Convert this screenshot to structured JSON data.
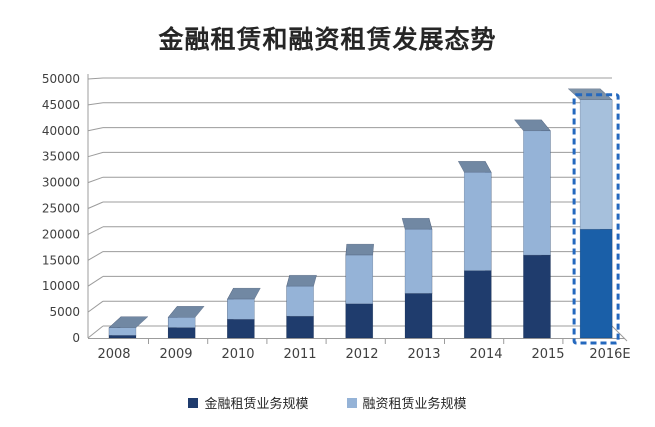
{
  "title": "金融租赁和融资租赁发展态势",
  "chart_data": {
    "type": "bar",
    "subtype": "stacked-3d-perspective",
    "title": "金融租赁和融资租赁发展态势",
    "categories": [
      "2008",
      "2009",
      "2010",
      "2011",
      "2012",
      "2013",
      "2014",
      "2015",
      "2016E"
    ],
    "series": [
      {
        "name": "金融租赁业务规模",
        "color": "#1F3C6D",
        "values": [
          500,
          2000,
          3600,
          4200,
          6600,
          8600,
          13000,
          16000,
          21000
        ]
      },
      {
        "name": "融资租赁业务规模",
        "color": "#95B3D7",
        "values": [
          1500,
          2000,
          3900,
          5800,
          9400,
          12400,
          19000,
          24000,
          25000
        ]
      }
    ],
    "stack_totals": [
      2000,
      4000,
      7500,
      10000,
      16000,
      21000,
      32000,
      40000,
      46000
    ],
    "xlabel": "",
    "ylabel": "",
    "ylim": [
      0,
      50000
    ],
    "ytick_interval": 5000,
    "yticks": [
      "0",
      "5000",
      "10000",
      "15000",
      "20000",
      "25000",
      "30000",
      "35000",
      "40000",
      "45000",
      "50000"
    ],
    "grid": true,
    "legend_position": "bottom",
    "forecast_category": "2016E",
    "colors": {
      "forecast_financial": "#1A5FA8",
      "forecast_finance": "#A6C0DC",
      "forecast_dash": "#2468BE",
      "gridline": "#9C9C9C",
      "axis_text": "#3F3F3F",
      "title_text": "#262626"
    }
  },
  "legend": {
    "items": [
      {
        "label": "金融租赁业务规模",
        "color": "#1F3C6D"
      },
      {
        "label": "融资租赁业务规模",
        "color": "#95B3D7"
      }
    ]
  }
}
